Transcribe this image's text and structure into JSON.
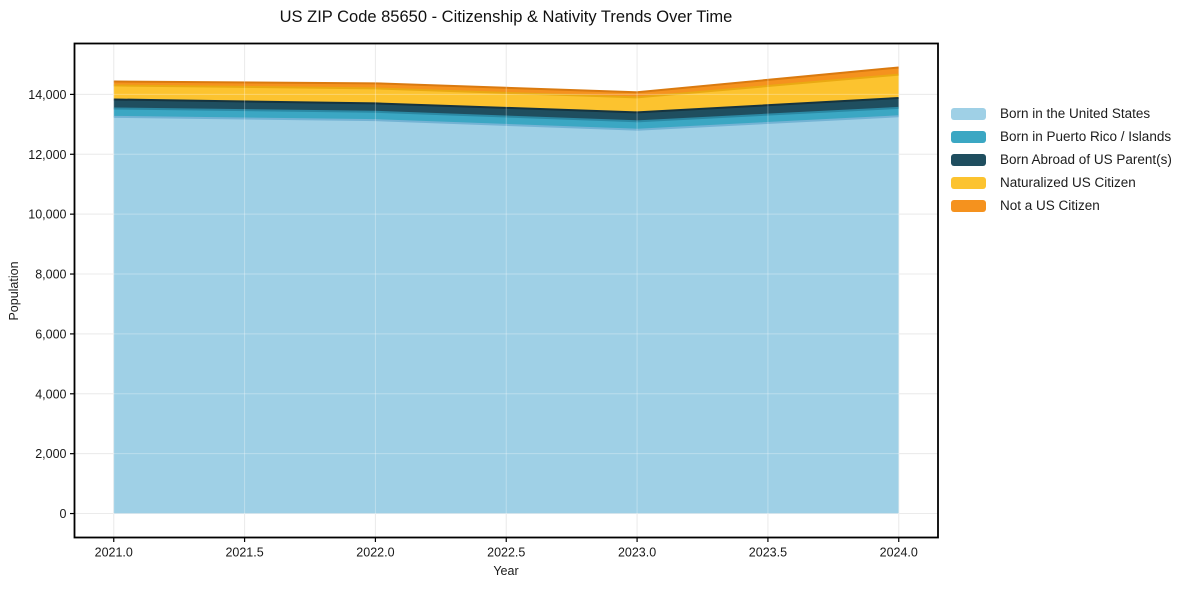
{
  "title": "US ZIP Code 85650 - Citizenship & Nativity Trends Over Time",
  "axes": {
    "xlabel": "Year",
    "ylabel": "Population",
    "x_tick_values": [
      2021.0,
      2021.5,
      2022.0,
      2022.5,
      2023.0,
      2023.5,
      2024.0
    ],
    "x_tick_labels": [
      "2021.0",
      "2021.5",
      "2022.0",
      "2022.5",
      "2023.0",
      "2023.5",
      "2024.0"
    ],
    "y_tick_values": [
      0,
      2000,
      4000,
      6000,
      8000,
      10000,
      12000,
      14000
    ],
    "y_tick_labels": [
      "0",
      "2,000",
      "4,000",
      "6,000",
      "8,000",
      "10,000",
      "12,000",
      "14,000"
    ],
    "xlim": [
      2020.85,
      2024.15
    ],
    "ylim": [
      -800,
      15700
    ]
  },
  "style": {
    "frame_color": "#000000",
    "grid_color": "#e3e3e3",
    "grid_overlay_color": "rgba(255,255,255,0.3)",
    "tick_color": "#000000"
  },
  "chart_data": {
    "type": "area",
    "stacked": true,
    "title": "US ZIP Code 85650 - Citizenship & Nativity Trends Over Time",
    "xlabel": "Year",
    "ylabel": "Population",
    "x": [
      2021,
      2022,
      2023,
      2024
    ],
    "xlim": [
      2020.85,
      2024.15
    ],
    "ylim": [
      -800,
      15700
    ],
    "grid": true,
    "legend_position": "right-outside",
    "series": [
      {
        "name": "Born in the United States",
        "color": "#9fd0e6",
        "edge_color": "#74b3d4",
        "values": [
          13250,
          13140,
          12820,
          13270
        ]
      },
      {
        "name": "Born in Puerto Rico / Islands",
        "color": "#3ba7c3",
        "edge_color": "#2b89a4",
        "values": [
          280,
          280,
          280,
          280
        ]
      },
      {
        "name": "Born Abroad of US Parent(s)",
        "color": "#1f4e5f",
        "edge_color": "#15333f",
        "values": [
          300,
          280,
          300,
          330
        ]
      },
      {
        "name": "Naturalized US Citizen",
        "color": "#fcc32f",
        "edge_color": "#eaa912",
        "values": [
          470,
          500,
          500,
          780
        ]
      },
      {
        "name": "Not a US Citizen",
        "color": "#f5921e",
        "edge_color": "#da7a0f",
        "values": [
          130,
          170,
          170,
          240
        ]
      }
    ]
  }
}
